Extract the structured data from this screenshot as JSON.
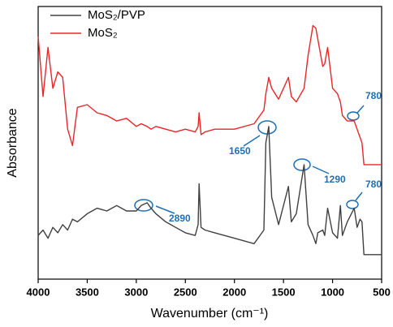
{
  "chart_data": {
    "type": "line",
    "xlabel": "Wavenumber (cm⁻¹)",
    "ylabel": "Absorbance",
    "x": [
      4000,
      3950,
      3900,
      3850,
      3800,
      3750,
      3700,
      3650,
      3600,
      3500,
      3400,
      3300,
      3200,
      3100,
      3000,
      2950,
      2890,
      2850,
      2800,
      2700,
      2600,
      2500,
      2400,
      2370,
      2360,
      2340,
      2300,
      2200,
      2000,
      1800,
      1700,
      1680,
      1650,
      1620,
      1550,
      1450,
      1420,
      1370,
      1290,
      1250,
      1200,
      1170,
      1150,
      1100,
      1080,
      1050,
      1000,
      950,
      920,
      900,
      850,
      780,
      750,
      720,
      700,
      680,
      650,
      600,
      500
    ],
    "series": [
      {
        "name": "MoS₂/PVP",
        "color": "#404040",
        "values": [
          16,
          18,
          15,
          19,
          17,
          20,
          18,
          22,
          21,
          24,
          26,
          25,
          27,
          25,
          25,
          27,
          28,
          26,
          24,
          21,
          19,
          17,
          16,
          20,
          35,
          19,
          18,
          17,
          15,
          13,
          18,
          50,
          56,
          30,
          20,
          34,
          21,
          24,
          42,
          20,
          16,
          13,
          17,
          18,
          16,
          26,
          17,
          15,
          27,
          16,
          21,
          26,
          19,
          22,
          21,
          9,
          9,
          9,
          9
        ]
      },
      {
        "name": "MoS₂",
        "color": "#e8262a",
        "values": [
          89,
          67,
          85,
          70,
          76,
          74,
          55,
          49,
          63,
          64,
          61,
          60,
          58,
          59,
          56,
          57,
          56,
          55,
          56,
          55,
          54,
          55,
          54,
          56,
          61,
          53,
          54,
          55,
          55,
          57,
          62,
          68,
          74,
          70,
          66,
          74,
          67,
          65,
          70,
          82,
          93,
          92,
          88,
          78,
          79,
          85,
          70,
          68,
          65,
          60,
          58,
          58,
          55,
          52,
          50,
          42,
          42,
          42,
          42
        ]
      }
    ],
    "xlim": [
      4000,
      500
    ],
    "xticks": [
      4000,
      3500,
      3000,
      2500,
      2000,
      1500,
      1000,
      500
    ],
    "ylim": [
      0,
      100
    ],
    "annotations": [
      "2890",
      "1650",
      "1290",
      "780",
      "780"
    ],
    "legend": "upper left"
  }
}
